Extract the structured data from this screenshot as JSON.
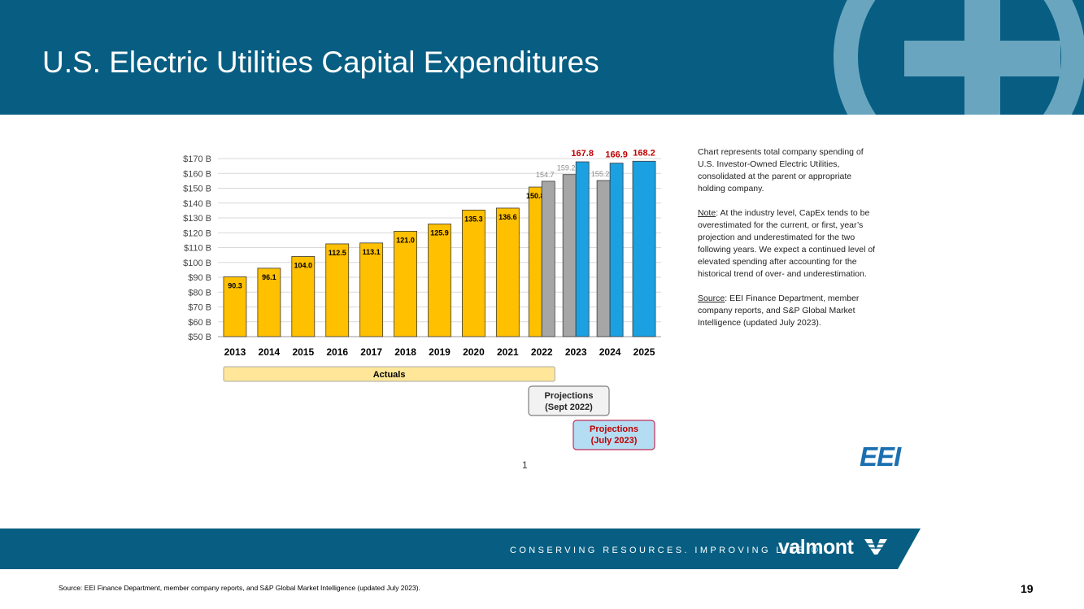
{
  "header": {
    "title": "U.S. Electric Utilities Capital Expenditures"
  },
  "colors": {
    "header_bg": "#075e82",
    "actual": "#ffc000",
    "proj_sept": "#a6a6a6",
    "proj_july": "#1ba1e2",
    "label_red": "#c00000"
  },
  "chart_data": {
    "type": "bar",
    "categories": [
      "2013",
      "2014",
      "2015",
      "2016",
      "2017",
      "2018",
      "2019",
      "2020",
      "2021",
      "2022",
      "2023",
      "2024",
      "2025"
    ],
    "yticks": [
      "$50 B",
      "$60 B",
      "$70 B",
      "$80 B",
      "$90 B",
      "$100 B",
      "$110 B",
      "$120 B",
      "$130 B",
      "$140 B",
      "$150 B",
      "$160 B",
      "$170 B"
    ],
    "ylim": [
      50,
      170
    ],
    "grid": true,
    "series": [
      {
        "name": "Actuals",
        "values": [
          90.3,
          96.1,
          104.0,
          112.5,
          113.1,
          121.0,
          125.9,
          135.3,
          136.6,
          150.8,
          null,
          null,
          null
        ],
        "labels": [
          "90.3",
          "96.1",
          "104.0",
          "112.5",
          "113.1",
          "121.0",
          "125.9",
          "135.3",
          "136.6",
          "150.8",
          "",
          "",
          ""
        ]
      },
      {
        "name": "Projections (Sept 2022)",
        "values": [
          null,
          null,
          null,
          null,
          null,
          null,
          null,
          null,
          null,
          154.7,
          159.2,
          155.2,
          null
        ],
        "labels": [
          "",
          "",
          "",
          "",
          "",
          "",
          "",
          "",
          "",
          "154.7",
          "159.2",
          "155.2",
          ""
        ]
      },
      {
        "name": "Projections (July 2023)",
        "values": [
          null,
          null,
          null,
          null,
          null,
          null,
          null,
          null,
          null,
          null,
          167.8,
          166.9,
          168.2
        ],
        "labels": [
          "",
          "",
          "",
          "",
          "",
          "",
          "",
          "",
          "",
          "",
          "167.8",
          "166.9",
          "168.2"
        ]
      }
    ],
    "legend": {
      "actuals": "Actuals",
      "sept_line1": "Projections",
      "sept_line2": "(Sept 2022)",
      "july_line1": "Projections",
      "july_line2": "(July 2023)"
    }
  },
  "notes": {
    "p1": "Chart represents total company spending of U.S. Investor-Owned Electric Utilities, consolidated at the parent or appropriate holding company.",
    "note_label": "Note",
    "note_text": ": At the industry level, CapEx tends to be overestimated for the current, or first, year’s projection and underestimated for the two following years. We expect a continued level of elevated spending after accounting for the historical trend of over- and underestimation.",
    "source_label": "Source",
    "source_text": ": EEI Finance Department, member company reports, and S&P Global Market Intelligence (updated July 2023)."
  },
  "page_number": "1",
  "logo_eei": "EEI",
  "footer": {
    "tagline": "CONSERVING RESOURCES. IMPROVING LIFE.®",
    "brand": "valmont",
    "source": "Source: EEI Finance Department, member company reports, and S&P Global Market Intelligence (updated July 2023).",
    "slide_number": "19"
  }
}
